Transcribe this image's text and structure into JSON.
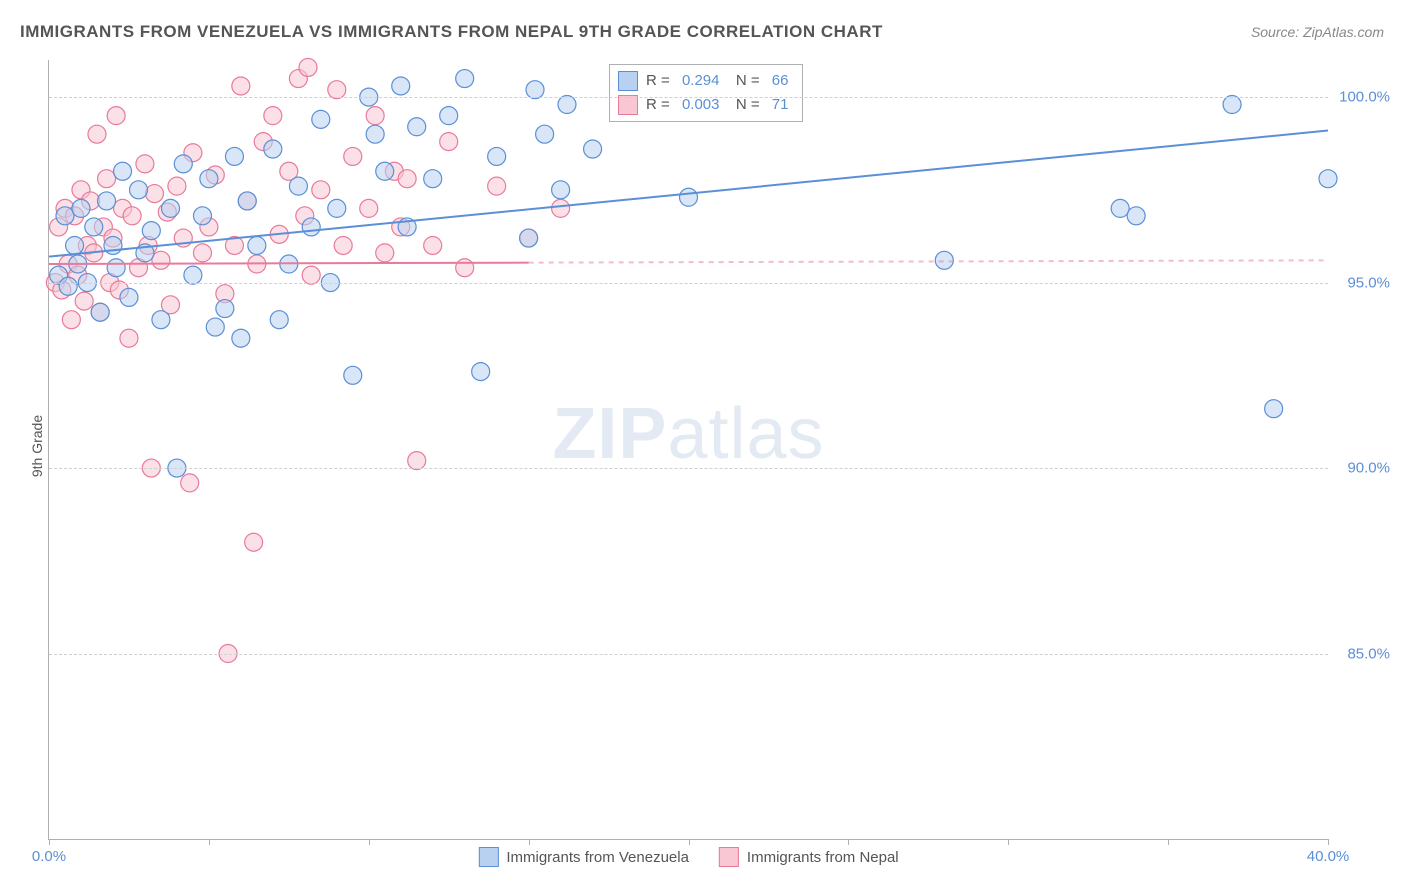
{
  "title": "IMMIGRANTS FROM VENEZUELA VS IMMIGRANTS FROM NEPAL 9TH GRADE CORRELATION CHART",
  "source": "Source: ZipAtlas.com",
  "ylabel": "9th Grade",
  "watermark_bold": "ZIP",
  "watermark_light": "atlas",
  "chart": {
    "type": "scatter",
    "xlim": [
      0,
      40
    ],
    "ylim": [
      80,
      101
    ],
    "x_ticks": [
      0,
      5,
      10,
      15,
      20,
      25,
      30,
      35,
      40
    ],
    "x_tick_labels": {
      "0": "0.0%",
      "40": "40.0%"
    },
    "y_ticks": [
      85,
      90,
      95,
      100
    ],
    "y_tick_labels": {
      "85": "85.0%",
      "90": "90.0%",
      "95": "95.0%",
      "100": "100.0%"
    },
    "background_color": "#ffffff",
    "grid_color": "#d0d0d0",
    "axis_color": "#b0b0b0",
    "marker_radius": 9,
    "marker_stroke_width": 1.2,
    "trend_line_width": 2
  },
  "series_a": {
    "label": "Immigrants from Venezuela",
    "fill": "#b8d1f0",
    "stroke": "#5b8fd6",
    "fill_opacity": 0.55,
    "r_value": "0.294",
    "n_value": "66",
    "trend": {
      "x1": 0,
      "y1": 95.7,
      "x2": 40,
      "y2": 99.1,
      "dash_from_x": 40
    },
    "points": [
      [
        0.3,
        95.2
      ],
      [
        0.5,
        96.8
      ],
      [
        0.6,
        94.9
      ],
      [
        0.8,
        96.0
      ],
      [
        0.9,
        95.5
      ],
      [
        1.0,
        97.0
      ],
      [
        1.2,
        95.0
      ],
      [
        1.4,
        96.5
      ],
      [
        1.6,
        94.2
      ],
      [
        1.8,
        97.2
      ],
      [
        2.0,
        96.0
      ],
      [
        2.1,
        95.4
      ],
      [
        2.3,
        98.0
      ],
      [
        2.5,
        94.6
      ],
      [
        2.8,
        97.5
      ],
      [
        3.0,
        95.8
      ],
      [
        3.2,
        96.4
      ],
      [
        3.5,
        94.0
      ],
      [
        3.8,
        97.0
      ],
      [
        4.0,
        90.0
      ],
      [
        4.2,
        98.2
      ],
      [
        4.5,
        95.2
      ],
      [
        4.8,
        96.8
      ],
      [
        5.0,
        97.8
      ],
      [
        5.2,
        93.8
      ],
      [
        5.5,
        94.3
      ],
      [
        5.8,
        98.4
      ],
      [
        6.0,
        93.5
      ],
      [
        6.2,
        97.2
      ],
      [
        6.5,
        96.0
      ],
      [
        7.0,
        98.6
      ],
      [
        7.2,
        94.0
      ],
      [
        7.5,
        95.5
      ],
      [
        7.8,
        97.6
      ],
      [
        8.2,
        96.5
      ],
      [
        8.5,
        99.4
      ],
      [
        8.8,
        95.0
      ],
      [
        9.0,
        97.0
      ],
      [
        9.5,
        92.5
      ],
      [
        10.0,
        100.0
      ],
      [
        10.2,
        99.0
      ],
      [
        10.5,
        98.0
      ],
      [
        11.0,
        100.3
      ],
      [
        11.2,
        96.5
      ],
      [
        11.5,
        99.2
      ],
      [
        12.0,
        97.8
      ],
      [
        12.5,
        99.5
      ],
      [
        13.0,
        100.5
      ],
      [
        13.5,
        92.6
      ],
      [
        14.0,
        98.4
      ],
      [
        15.0,
        96.2
      ],
      [
        15.2,
        100.2
      ],
      [
        15.5,
        99.0
      ],
      [
        16.0,
        97.5
      ],
      [
        16.2,
        99.8
      ],
      [
        17.0,
        98.6
      ],
      [
        18.0,
        100.4
      ],
      [
        20.0,
        97.3
      ],
      [
        22.0,
        100.5
      ],
      [
        22.5,
        100.2
      ],
      [
        28.0,
        95.6
      ],
      [
        33.5,
        97.0
      ],
      [
        34.0,
        96.8
      ],
      [
        37.0,
        99.8
      ],
      [
        38.3,
        91.6
      ],
      [
        40.0,
        97.8
      ]
    ]
  },
  "series_b": {
    "label": "Immigrants from Nepal",
    "fill": "#f8c7d3",
    "stroke": "#e87a9a",
    "fill_opacity": 0.55,
    "r_value": "0.003",
    "n_value": "71",
    "trend": {
      "x1": 0,
      "y1": 95.5,
      "x2": 40,
      "y2": 95.6,
      "dash_from_x": 15
    },
    "points": [
      [
        0.2,
        95.0
      ],
      [
        0.3,
        96.5
      ],
      [
        0.4,
        94.8
      ],
      [
        0.5,
        97.0
      ],
      [
        0.6,
        95.5
      ],
      [
        0.7,
        94.0
      ],
      [
        0.8,
        96.8
      ],
      [
        0.9,
        95.2
      ],
      [
        1.0,
        97.5
      ],
      [
        1.1,
        94.5
      ],
      [
        1.2,
        96.0
      ],
      [
        1.3,
        97.2
      ],
      [
        1.4,
        95.8
      ],
      [
        1.5,
        99.0
      ],
      [
        1.6,
        94.2
      ],
      [
        1.7,
        96.5
      ],
      [
        1.8,
        97.8
      ],
      [
        1.9,
        95.0
      ],
      [
        2.0,
        96.2
      ],
      [
        2.1,
        99.5
      ],
      [
        2.2,
        94.8
      ],
      [
        2.3,
        97.0
      ],
      [
        2.5,
        93.5
      ],
      [
        2.6,
        96.8
      ],
      [
        2.8,
        95.4
      ],
      [
        3.0,
        98.2
      ],
      [
        3.1,
        96.0
      ],
      [
        3.2,
        90.0
      ],
      [
        3.3,
        97.4
      ],
      [
        3.5,
        95.6
      ],
      [
        3.7,
        96.9
      ],
      [
        3.8,
        94.4
      ],
      [
        4.0,
        97.6
      ],
      [
        4.2,
        96.2
      ],
      [
        4.4,
        89.6
      ],
      [
        4.5,
        98.5
      ],
      [
        4.8,
        95.8
      ],
      [
        5.0,
        96.5
      ],
      [
        5.2,
        97.9
      ],
      [
        5.5,
        94.7
      ],
      [
        5.6,
        85.0
      ],
      [
        5.8,
        96.0
      ],
      [
        6.0,
        100.3
      ],
      [
        6.2,
        97.2
      ],
      [
        6.4,
        88.0
      ],
      [
        6.5,
        95.5
      ],
      [
        6.7,
        98.8
      ],
      [
        7.0,
        99.5
      ],
      [
        7.2,
        96.3
      ],
      [
        7.5,
        98.0
      ],
      [
        7.8,
        100.5
      ],
      [
        8.0,
        96.8
      ],
      [
        8.1,
        100.8
      ],
      [
        8.2,
        95.2
      ],
      [
        8.5,
        97.5
      ],
      [
        9.0,
        100.2
      ],
      [
        9.2,
        96.0
      ],
      [
        9.5,
        98.4
      ],
      [
        10.0,
        97.0
      ],
      [
        10.2,
        99.5
      ],
      [
        10.5,
        95.8
      ],
      [
        10.8,
        98.0
      ],
      [
        11.0,
        96.5
      ],
      [
        11.2,
        97.8
      ],
      [
        11.5,
        90.2
      ],
      [
        12.0,
        96.0
      ],
      [
        12.5,
        98.8
      ],
      [
        13.0,
        95.4
      ],
      [
        14.0,
        97.6
      ],
      [
        15.0,
        96.2
      ],
      [
        16.0,
        97.0
      ]
    ]
  },
  "legend_labels": {
    "r_prefix": "R = ",
    "n_prefix": "N = "
  }
}
